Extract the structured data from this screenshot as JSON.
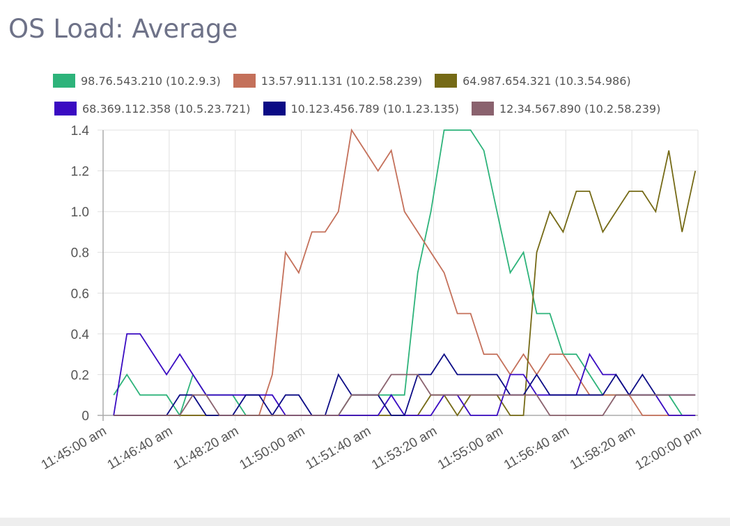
{
  "header": {
    "title": "OS Load: Average"
  },
  "chart_data": {
    "type": "line",
    "title": "OS Load: Average",
    "legend_position": "top",
    "grid": true,
    "ylim": [
      0,
      1.4
    ],
    "y_ticks": [
      "0",
      "0.2",
      "0.4",
      "0.6",
      "0.8",
      "1.0",
      "1.2",
      "1.4"
    ],
    "x_ticks": [
      "11:45:00 am",
      "11:46:40 am",
      "11:48:20 am",
      "11:50:00 am",
      "11:51:40 am",
      "11:53:20 am",
      "11:55:00 am",
      "11:56:40 am",
      "11:58:20 am",
      "12:00:00 pm"
    ],
    "x": [
      "11:45:16",
      "11:45:36",
      "11:45:56",
      "11:46:16",
      "11:46:36",
      "11:46:56",
      "11:47:16",
      "11:47:36",
      "11:47:56",
      "11:48:16",
      "11:48:36",
      "11:48:56",
      "11:49:16",
      "11:49:36",
      "11:49:56",
      "11:50:16",
      "11:50:36",
      "11:50:56",
      "11:51:16",
      "11:51:36",
      "11:51:56",
      "11:52:16",
      "11:52:36",
      "11:52:56",
      "11:53:16",
      "11:53:36",
      "11:53:56",
      "11:54:16",
      "11:54:36",
      "11:54:56",
      "11:55:16",
      "11:55:36",
      "11:55:56",
      "11:56:16",
      "11:56:36",
      "11:56:56",
      "11:57:16",
      "11:57:36",
      "11:57:56",
      "11:58:16",
      "11:58:36",
      "11:58:56",
      "11:59:16",
      "11:59:36",
      "11:59:56"
    ],
    "series": [
      {
        "name": "98.76.543.210 (10.2.9.3)",
        "color": "#2db37a",
        "values": [
          0.1,
          0.2,
          0.1,
          0.1,
          0.1,
          0,
          0.2,
          0.1,
          0.1,
          0.1,
          0,
          0,
          0,
          0,
          0,
          0,
          0,
          0,
          0.1,
          0.1,
          0.1,
          0.1,
          0.1,
          0.7,
          1.0,
          1.4,
          1.4,
          1.4,
          1.3,
          1.0,
          0.7,
          0.8,
          0.5,
          0.5,
          0.3,
          0.3,
          0.2,
          0.1,
          0.1,
          0.1,
          0.1,
          0.1,
          0.1,
          0,
          0
        ]
      },
      {
        "name": "13.57.911.131 (10.2.58.239)",
        "color": "#c4705a",
        "values": [
          0,
          0,
          0,
          0,
          0,
          0,
          0,
          0,
          0,
          0,
          0,
          0,
          0.2,
          0.8,
          0.7,
          0.9,
          0.9,
          1.0,
          1.4,
          1.3,
          1.2,
          1.3,
          1.0,
          0.9,
          0.8,
          0.7,
          0.5,
          0.5,
          0.3,
          0.3,
          0.2,
          0.3,
          0.2,
          0.3,
          0.3,
          0.2,
          0.1,
          0.1,
          0.1,
          0.1,
          0,
          0,
          0,
          0,
          0
        ]
      },
      {
        "name": "64.987.654.321 (10.3.54.986)",
        "color": "#756a16",
        "values": [
          0,
          0,
          0,
          0,
          0,
          0,
          0,
          0,
          0,
          0,
          0,
          0,
          0,
          0,
          0,
          0,
          0,
          0,
          0,
          0,
          0,
          0,
          0,
          0,
          0.1,
          0.1,
          0,
          0.1,
          0.1,
          0.1,
          0,
          0,
          0.8,
          1.0,
          0.9,
          1.1,
          1.1,
          0.9,
          1.0,
          1.1,
          1.1,
          1.0,
          1.3,
          0.9,
          1.2
        ]
      },
      {
        "name": "68.369.112.358 (10.5.23.721)",
        "color": "#3a0bc2",
        "values": [
          0,
          0.4,
          0.4,
          0.3,
          0.2,
          0.3,
          0.2,
          0.1,
          0.1,
          0.1,
          0.1,
          0.1,
          0.1,
          0,
          0,
          0,
          0,
          0,
          0,
          0,
          0,
          0.1,
          0,
          0,
          0,
          0.1,
          0.1,
          0,
          0,
          0,
          0.2,
          0.2,
          0.1,
          0.1,
          0.1,
          0.1,
          0.3,
          0.2,
          0.2,
          0.1,
          0.1,
          0.1,
          0,
          0,
          0
        ]
      },
      {
        "name": "10.123.456.789 (10.1.23.135)",
        "color": "#0b0b85",
        "values": [
          0,
          0,
          0,
          0,
          0,
          0.1,
          0.1,
          0,
          0,
          0,
          0.1,
          0.1,
          0,
          0.1,
          0.1,
          0,
          0,
          0.2,
          0.1,
          0.1,
          0.1,
          0,
          0,
          0.2,
          0.2,
          0.3,
          0.2,
          0.2,
          0.2,
          0.2,
          0.1,
          0.1,
          0.2,
          0.1,
          0.1,
          0.1,
          0.1,
          0.1,
          0.2,
          0.1,
          0.2,
          0.1,
          0.1,
          0.1,
          0.1
        ]
      },
      {
        "name": "12.34.567.890 (10.2.58.239)",
        "color": "#8a626e",
        "values": [
          0,
          0,
          0,
          0,
          0,
          0,
          0.1,
          0.1,
          0,
          0,
          0,
          0,
          0,
          0,
          0,
          0,
          0,
          0,
          0.1,
          0.1,
          0.1,
          0.2,
          0.2,
          0.2,
          0.1,
          0.1,
          0.1,
          0.1,
          0.1,
          0.1,
          0.1,
          0.1,
          0.1,
          0,
          0,
          0,
          0,
          0,
          0.1,
          0.1,
          0.1,
          0.1,
          0.1,
          0.1,
          0.1
        ]
      }
    ]
  }
}
